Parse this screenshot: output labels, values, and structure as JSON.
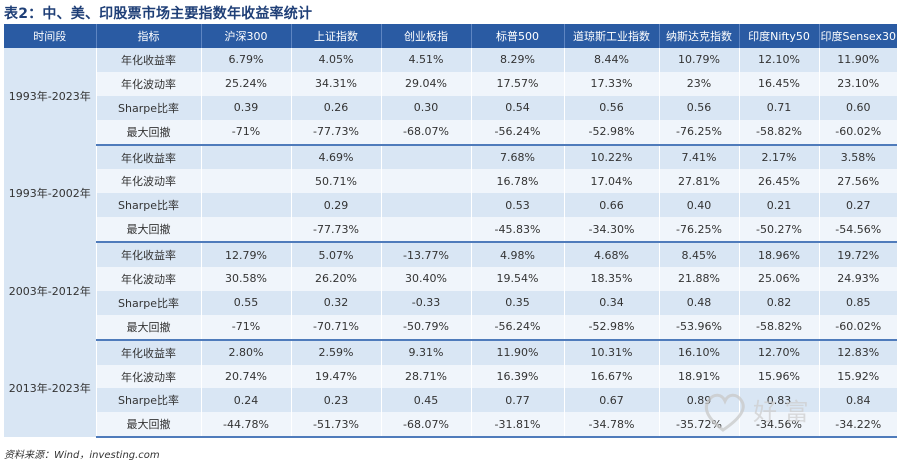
{
  "title": "表2：中、美、印股票市场主要指数年收益率统计",
  "headers": [
    "时间段",
    "指标",
    "沪深300",
    "上证指数",
    "创业板指",
    "标普500",
    "道琼斯工业指数",
    "纳斯达克指数",
    "印度Nifty50",
    "印度Sensex30"
  ],
  "groups": [
    {
      "period": "1993年-2023年",
      "rows": [
        {
          "metric": "年化收益率",
          "values": [
            "6.79%",
            "4.05%",
            "4.51%",
            "8.29%",
            "8.44%",
            "10.79%",
            "12.10%",
            "11.90%"
          ]
        },
        {
          "metric": "年化波动率",
          "values": [
            "25.24%",
            "34.31%",
            "29.04%",
            "17.57%",
            "17.33%",
            "23%",
            "16.45%",
            "23.10%"
          ]
        },
        {
          "metric": "Sharpe比率",
          "values": [
            "0.39",
            "0.26",
            "0.30",
            "0.54",
            "0.56",
            "0.56",
            "0.71",
            "0.60"
          ]
        },
        {
          "metric": "最大回撤",
          "values": [
            "-71%",
            "-77.73%",
            "-68.07%",
            "-56.24%",
            "-52.98%",
            "-76.25%",
            "-58.82%",
            "-60.02%"
          ]
        }
      ]
    },
    {
      "period": "1993年-2002年",
      "rows": [
        {
          "metric": "年化收益率",
          "values": [
            "",
            "4.69%",
            "",
            "7.68%",
            "10.22%",
            "7.41%",
            "2.17%",
            "3.58%"
          ]
        },
        {
          "metric": "年化波动率",
          "values": [
            "",
            "50.71%",
            "",
            "16.78%",
            "17.04%",
            "27.81%",
            "26.45%",
            "27.56%"
          ]
        },
        {
          "metric": "Sharpe比率",
          "values": [
            "",
            "0.29",
            "",
            "0.53",
            "0.66",
            "0.40",
            "0.21",
            "0.27"
          ]
        },
        {
          "metric": "最大回撤",
          "values": [
            "",
            "-77.73%",
            "",
            "-45.83%",
            "-34.30%",
            "-76.25%",
            "-50.27%",
            "-54.56%"
          ]
        }
      ]
    },
    {
      "period": "2003年-2012年",
      "rows": [
        {
          "metric": "年化收益率",
          "values": [
            "12.79%",
            "5.07%",
            "-13.77%",
            "4.98%",
            "4.68%",
            "8.45%",
            "18.96%",
            "19.72%"
          ]
        },
        {
          "metric": "年化波动率",
          "values": [
            "30.58%",
            "26.20%",
            "30.40%",
            "19.54%",
            "18.35%",
            "21.88%",
            "25.06%",
            "24.93%"
          ]
        },
        {
          "metric": "Sharpe比率",
          "values": [
            "0.55",
            "0.32",
            "-0.33",
            "0.35",
            "0.34",
            "0.48",
            "0.82",
            "0.85"
          ]
        },
        {
          "metric": "最大回撤",
          "values": [
            "-71%",
            "-70.71%",
            "-50.79%",
            "-56.24%",
            "-52.98%",
            "-53.96%",
            "-58.82%",
            "-60.02%"
          ]
        }
      ]
    },
    {
      "period": "2013年-2023年",
      "rows": [
        {
          "metric": "年化收益率",
          "values": [
            "2.80%",
            "2.59%",
            "9.31%",
            "11.90%",
            "10.31%",
            "16.10%",
            "12.70%",
            "12.83%"
          ]
        },
        {
          "metric": "年化波动率",
          "values": [
            "20.74%",
            "19.47%",
            "28.71%",
            "16.39%",
            "16.67%",
            "18.91%",
            "15.96%",
            "15.92%"
          ]
        },
        {
          "metric": "Sharpe比率",
          "values": [
            "0.24",
            "0.23",
            "0.45",
            "0.77",
            "0.67",
            "0.89",
            "0.83",
            "0.84"
          ]
        },
        {
          "metric": "最大回撤",
          "values": [
            "-44.78%",
            "-51.73%",
            "-68.07%",
            "-31.81%",
            "-34.78%",
            "-35.72%",
            "-34.56%",
            "-34.22%"
          ]
        }
      ]
    }
  ],
  "source": "资料来源：Wind，investing.com",
  "watermark_text": "好 富",
  "colors": {
    "title": "#1f3f77",
    "header_bg": "#2a5ba3",
    "row_dark": "#d9e6f4",
    "row_light": "#f0f5fb",
    "divider": "#4f7bbb"
  }
}
